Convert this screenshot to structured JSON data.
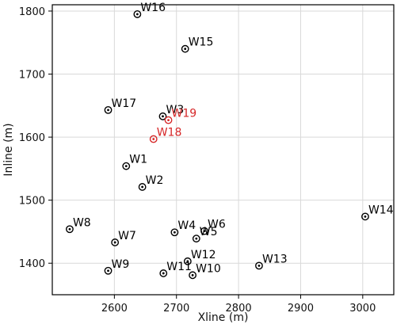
{
  "chart_data": {
    "type": "scatter",
    "xlabel": "Xline (m)",
    "ylabel": "Inline (m)",
    "xlim": [
      2500,
      3050
    ],
    "ylim": [
      1350,
      1810
    ],
    "xticks": [
      2600,
      2700,
      2800,
      2900,
      3000
    ],
    "yticks": [
      1400,
      1500,
      1600,
      1700,
      1800
    ],
    "grid": true,
    "colors": {
      "normal": "#000000",
      "highlight": "#d62728",
      "grid": "#d9d9d9"
    },
    "points": [
      {
        "name": "W16",
        "x": 2637,
        "y": 1795,
        "highlight": false
      },
      {
        "name": "W15",
        "x": 2714,
        "y": 1740,
        "highlight": false
      },
      {
        "name": "W17",
        "x": 2590,
        "y": 1643,
        "highlight": false
      },
      {
        "name": "W3",
        "x": 2678,
        "y": 1633,
        "highlight": false
      },
      {
        "name": "W19",
        "x": 2687,
        "y": 1627,
        "highlight": true
      },
      {
        "name": "W18",
        "x": 2663,
        "y": 1597,
        "highlight": true
      },
      {
        "name": "W1",
        "x": 2619,
        "y": 1554,
        "highlight": false
      },
      {
        "name": "W2",
        "x": 2645,
        "y": 1521,
        "highlight": false
      },
      {
        "name": "W14",
        "x": 3004,
        "y": 1474,
        "highlight": false
      },
      {
        "name": "W8",
        "x": 2528,
        "y": 1454,
        "highlight": false
      },
      {
        "name": "W6",
        "x": 2745,
        "y": 1451,
        "highlight": false
      },
      {
        "name": "W4",
        "x": 2697,
        "y": 1449,
        "highlight": false
      },
      {
        "name": "W5",
        "x": 2732,
        "y": 1439,
        "highlight": false
      },
      {
        "name": "W7",
        "x": 2601,
        "y": 1433,
        "highlight": false
      },
      {
        "name": "W12",
        "x": 2718,
        "y": 1403,
        "highlight": false
      },
      {
        "name": "W13",
        "x": 2833,
        "y": 1396,
        "highlight": false
      },
      {
        "name": "W9",
        "x": 2590,
        "y": 1388,
        "highlight": false
      },
      {
        "name": "W11",
        "x": 2679,
        "y": 1384,
        "highlight": false
      },
      {
        "name": "W10",
        "x": 2726,
        "y": 1381,
        "highlight": false
      }
    ]
  }
}
